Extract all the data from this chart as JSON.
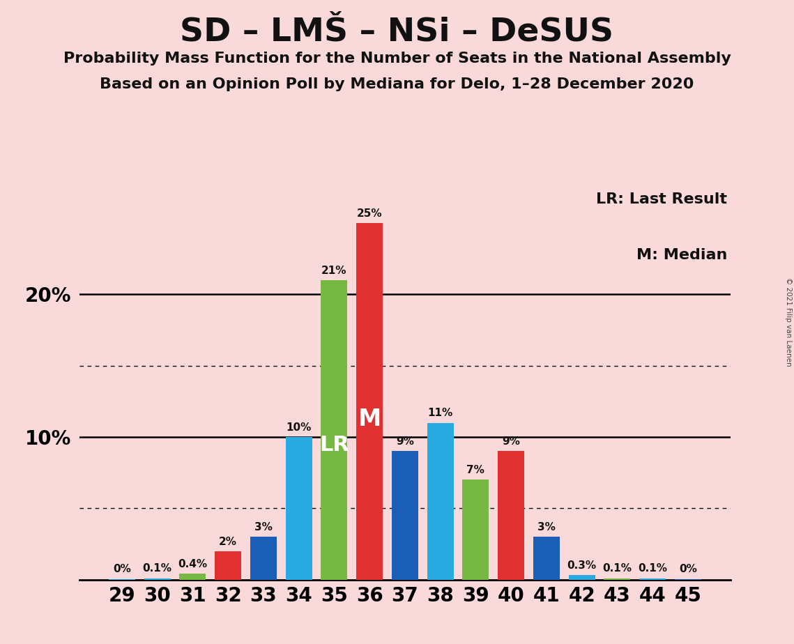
{
  "title": "SD – LMŠ – NSi – DeSUS",
  "subtitle1": "Probability Mass Function for the Number of Seats in the National Assembly",
  "subtitle2": "Based on an Opinion Poll by Mediana for Delo, 1–28 December 2020",
  "copyright": "© 2021 Filip van Laenen",
  "seats": [
    29,
    30,
    31,
    32,
    33,
    34,
    35,
    36,
    37,
    38,
    39,
    40,
    41,
    42,
    43,
    44,
    45
  ],
  "values": [
    0.05,
    0.1,
    0.4,
    2.0,
    3.0,
    10.0,
    21.0,
    25.0,
    9.0,
    11.0,
    7.0,
    9.0,
    3.0,
    0.3,
    0.1,
    0.1,
    0.05
  ],
  "colors": [
    "#29abe2",
    "#29abe2",
    "#77b843",
    "#e03030",
    "#1a5eb8",
    "#29abe2",
    "#77b843",
    "#e03030",
    "#1a5eb8",
    "#29abe2",
    "#77b843",
    "#e03030",
    "#1a5eb8",
    "#29abe2",
    "#77b843",
    "#29abe2",
    "#1a5eb8"
  ],
  "bar_labels": [
    "0%",
    "0.1%",
    "0.4%",
    "2%",
    "3%",
    "10%",
    "21%",
    "25%",
    "9%",
    "11%",
    "7%",
    "9%",
    "3%",
    "0.3%",
    "0.1%",
    "0.1%",
    "0%"
  ],
  "lr_seat": 35,
  "median_seat": 36,
  "background_color": "#f9d9d9",
  "legend_lr": "LR: Last Result",
  "legend_m": "M: Median",
  "title_fontsize": 34,
  "subtitle_fontsize": 16,
  "tick_fontsize": 20,
  "ylabel_fontsize": 20
}
